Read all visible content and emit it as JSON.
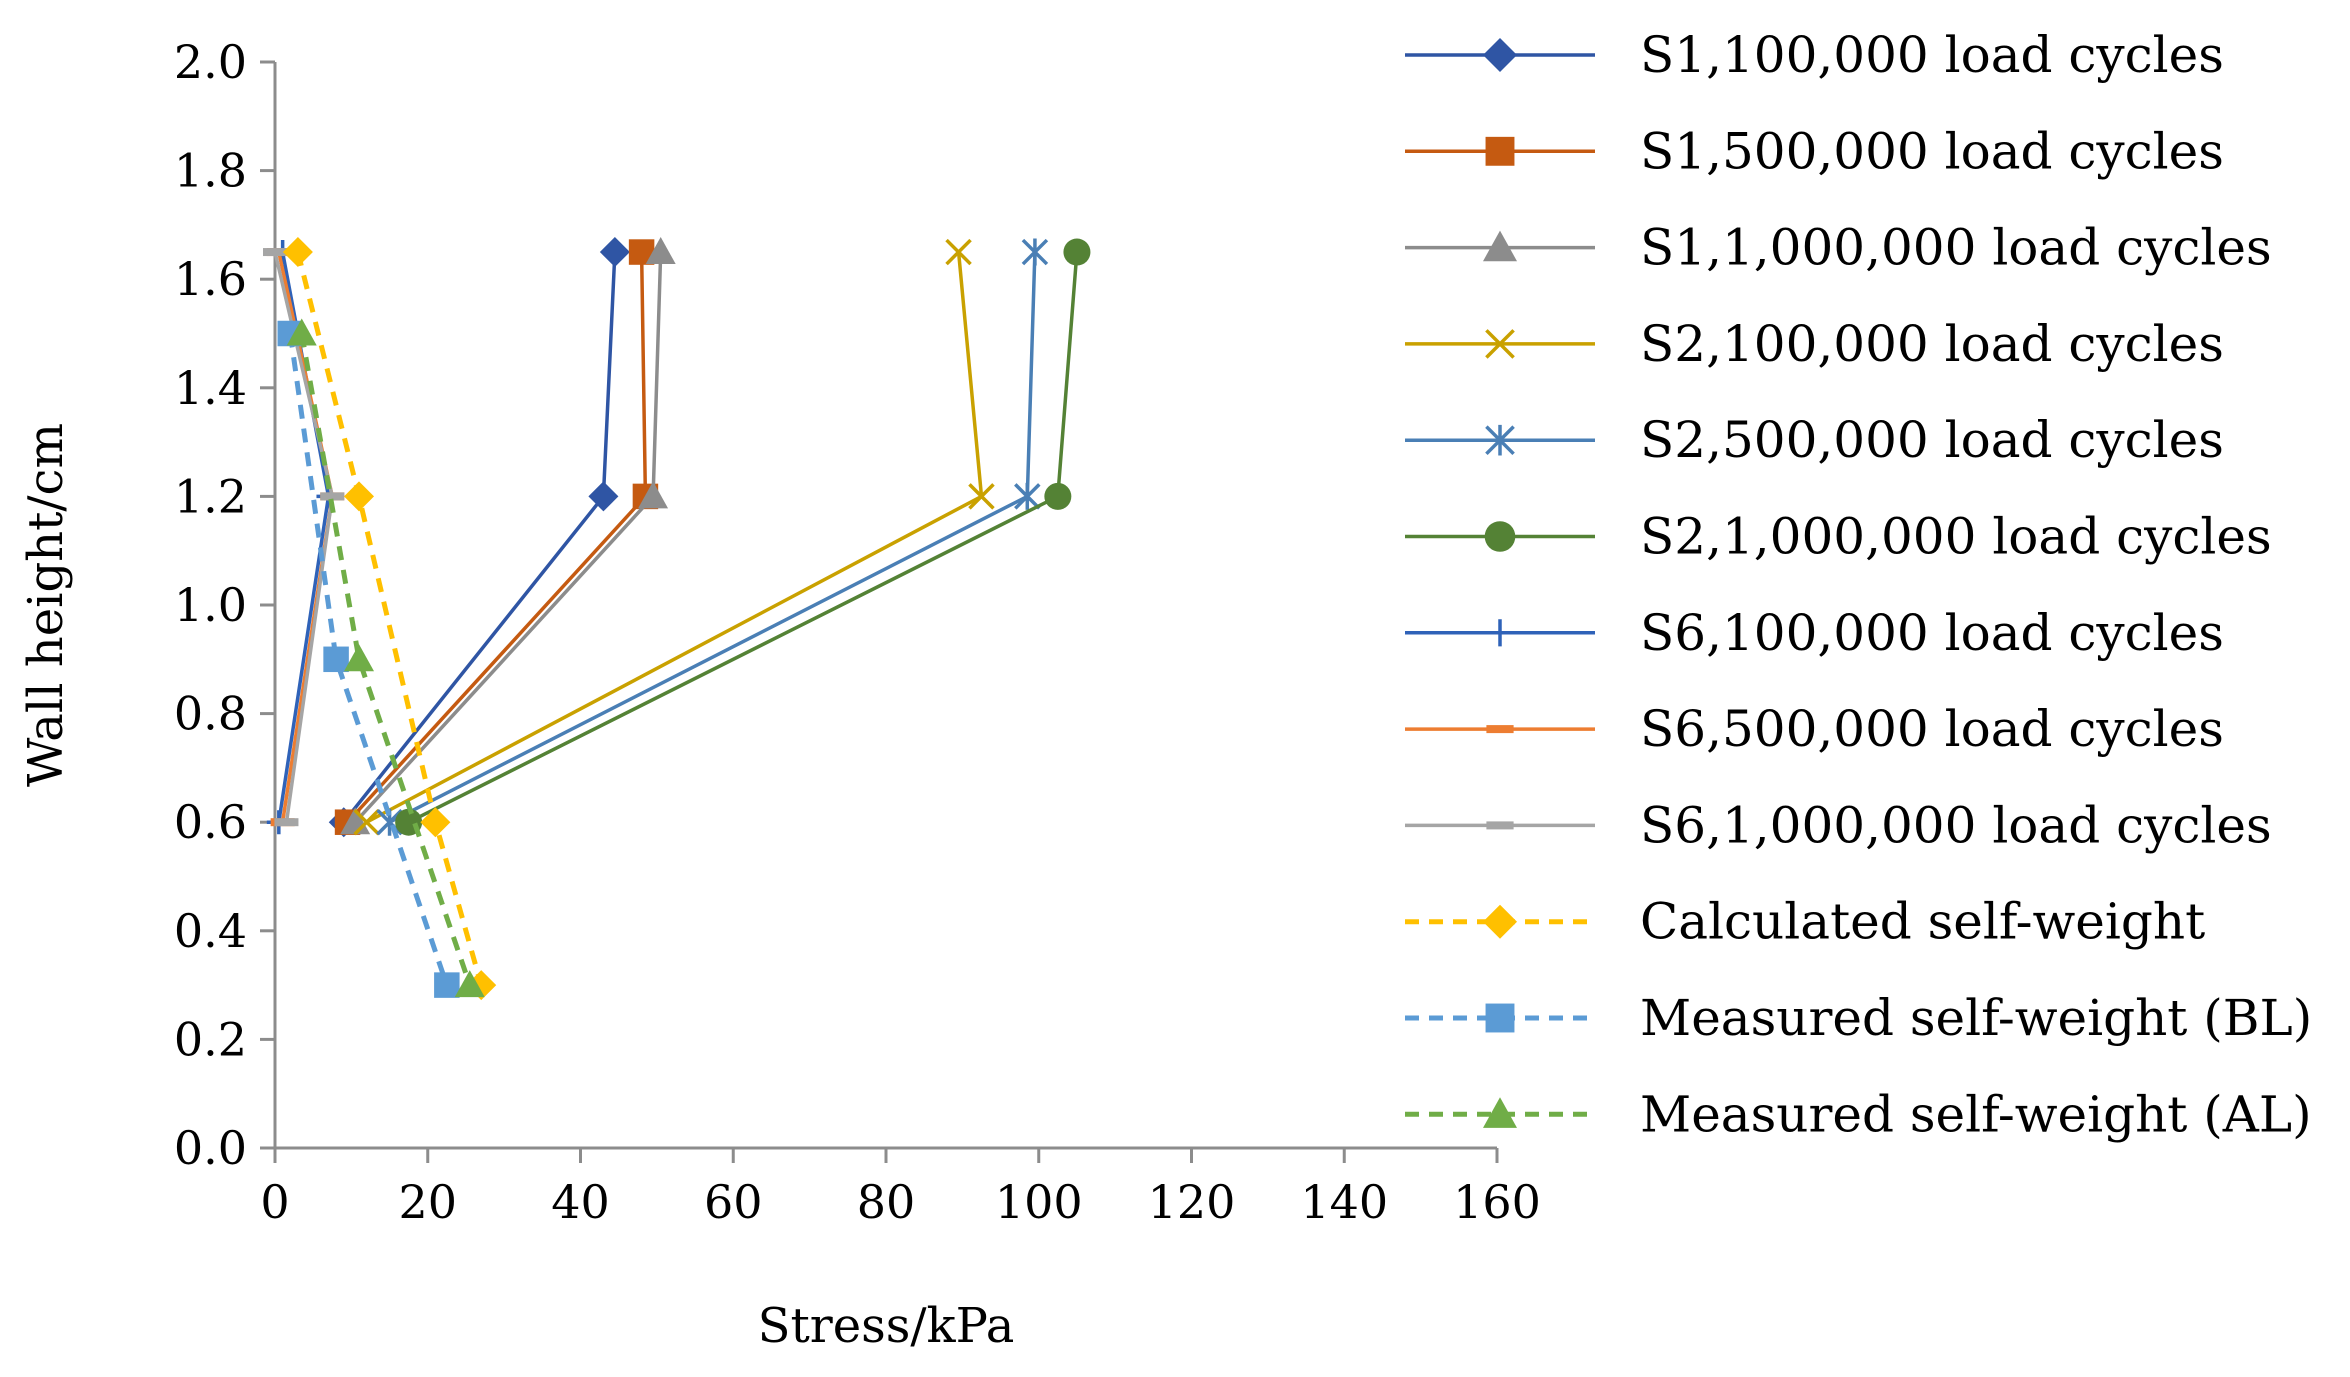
{
  "chart_data": {
    "type": "line",
    "title": "",
    "xlabel": "Stress/kPa",
    "ylabel": "Wall height/cm",
    "xlim": [
      0,
      160
    ],
    "ylim": [
      0,
      2.0
    ],
    "xticks": [
      "0",
      "20",
      "40",
      "60",
      "80",
      "100",
      "120",
      "140",
      "160"
    ],
    "yticks": [
      "0.0",
      "0.2",
      "0.4",
      "0.6",
      "0.8",
      "1.0",
      "1.2",
      "1.4",
      "1.6",
      "1.8",
      "2.0"
    ],
    "grid": false,
    "legend_position": "right",
    "series": [
      {
        "name": "S1,100,000 load cycles",
        "color": "#2f55a4",
        "marker": "diamond",
        "dash": "solid",
        "points": [
          [
            9,
            0.6
          ],
          [
            43,
            1.2
          ],
          [
            44.5,
            1.65
          ]
        ]
      },
      {
        "name": "S1,500,000 load cycles",
        "color": "#c55a11",
        "marker": "square",
        "dash": "solid",
        "points": [
          [
            9.5,
            0.6
          ],
          [
            48.5,
            1.2
          ],
          [
            48,
            1.65
          ]
        ]
      },
      {
        "name": "S1,1,000,000 load cycles",
        "color": "#8c8c8c",
        "marker": "triangle",
        "dash": "solid",
        "points": [
          [
            10.5,
            0.6
          ],
          [
            49.5,
            1.2
          ],
          [
            50.5,
            1.65
          ]
        ]
      },
      {
        "name": "S2,100,000 load cycles",
        "color": "#c9a100",
        "marker": "x",
        "dash": "solid",
        "points": [
          [
            12,
            0.6
          ],
          [
            92.5,
            1.2
          ],
          [
            89.5,
            1.65
          ]
        ]
      },
      {
        "name": "S2,500,000 load cycles",
        "color": "#4a7fb5",
        "marker": "asterisk",
        "dash": "solid",
        "points": [
          [
            15,
            0.6
          ],
          [
            98.5,
            1.2
          ],
          [
            99.5,
            1.65
          ]
        ]
      },
      {
        "name": "S2,1,000,000 load cycles",
        "color": "#548235",
        "marker": "circle",
        "dash": "solid",
        "points": [
          [
            17.5,
            0.6
          ],
          [
            102.5,
            1.2
          ],
          [
            105,
            1.65
          ]
        ]
      },
      {
        "name": "S6,100,000 load cycles",
        "color": "#2f62b8",
        "marker": "plus",
        "dash": "solid",
        "points": [
          [
            0.5,
            0.6
          ],
          [
            7,
            1.2
          ],
          [
            1,
            1.65
          ]
        ]
      },
      {
        "name": "S6,500,000 load cycles",
        "color": "#ed7d31",
        "marker": "dash",
        "dash": "solid",
        "points": [
          [
            1,
            0.6
          ],
          [
            7.5,
            1.2
          ],
          [
            0.5,
            1.65
          ]
        ]
      },
      {
        "name": "S6,1,000,000 load cycles",
        "color": "#a5a5a5",
        "marker": "dash",
        "dash": "solid",
        "points": [
          [
            1.5,
            0.6
          ],
          [
            7.5,
            1.2
          ],
          [
            0,
            1.65
          ]
        ]
      },
      {
        "name": "Calculated self-weight",
        "color": "#ffc000",
        "marker": "diamond",
        "dash": "dashed",
        "points": [
          [
            3,
            1.65
          ],
          [
            11,
            1.2
          ],
          [
            21,
            0.6
          ],
          [
            27,
            0.3
          ]
        ]
      },
      {
        "name": "Measured self-weight (BL)",
        "color": "#5b9bd5",
        "marker": "square",
        "dash": "dashed",
        "points": [
          [
            2,
            1.5
          ],
          [
            8,
            0.9
          ],
          [
            22.5,
            0.3
          ]
        ]
      },
      {
        "name": "Measured self-weight (AL)",
        "color": "#70ad47",
        "marker": "triangle",
        "dash": "dashed",
        "points": [
          [
            3.5,
            1.5
          ],
          [
            11,
            0.9
          ],
          [
            25.5,
            0.3
          ]
        ]
      }
    ]
  }
}
